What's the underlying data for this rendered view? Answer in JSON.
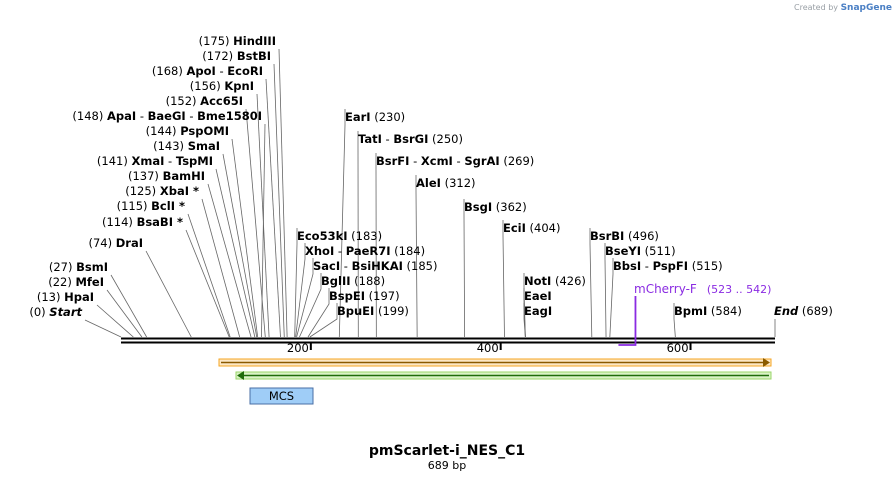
{
  "credit": {
    "prefix": "Created by",
    "brand": "SnapGene"
  },
  "plasmid": {
    "name": "pmScarlet-i_NES_C1",
    "length_label": "689 bp",
    "length": 689
  },
  "ruler": [
    {
      "value": 200,
      "label": "200"
    },
    {
      "value": 400,
      "label": "400"
    },
    {
      "value": 600,
      "label": "600"
    }
  ],
  "sites": [
    {
      "pos": 0,
      "posLabel": "(0)",
      "names": [
        "Start"
      ],
      "italic": true
    },
    {
      "pos": 13,
      "posLabel": "(13)",
      "names": [
        "HpaI"
      ]
    },
    {
      "pos": 22,
      "posLabel": "(22)",
      "names": [
        "MfeI"
      ]
    },
    {
      "pos": 27,
      "posLabel": "(27)",
      "names": [
        "BsmI"
      ]
    },
    {
      "pos": 74,
      "posLabel": "(74)",
      "names": [
        "DraI"
      ]
    },
    {
      "pos": 114,
      "posLabel": "(114)",
      "names": [
        "BsaBI *"
      ]
    },
    {
      "pos": 115,
      "posLabel": "(115)",
      "names": [
        "BclI *"
      ]
    },
    {
      "pos": 125,
      "posLabel": "(125)",
      "names": [
        "XbaI *"
      ]
    },
    {
      "pos": 137,
      "posLabel": "(137)",
      "names": [
        "BamHI"
      ]
    },
    {
      "pos": 141,
      "posLabel": "(141)",
      "names": [
        "XmaI",
        "TspMI"
      ]
    },
    {
      "pos": 143,
      "posLabel": "(143)",
      "names": [
        "SmaI"
      ]
    },
    {
      "pos": 144,
      "posLabel": "(144)",
      "names": [
        "PspOMI"
      ]
    },
    {
      "pos": 148,
      "posLabel": "(148)",
      "names": [
        "ApaI",
        "BaeGI",
        "Bme1580I"
      ]
    },
    {
      "pos": 152,
      "posLabel": "(152)",
      "names": [
        "Acc65I"
      ]
    },
    {
      "pos": 156,
      "posLabel": "(156)",
      "names": [
        "KpnI"
      ]
    },
    {
      "pos": 168,
      "posLabel": "(168)",
      "names": [
        "ApoI",
        "EcoRI"
      ]
    },
    {
      "pos": 172,
      "posLabel": "(172)",
      "names": [
        "BstBI"
      ]
    },
    {
      "pos": 175,
      "posLabel": "(175)",
      "names": [
        "HindIII"
      ]
    },
    {
      "pos": 183,
      "posLabel": "(183)",
      "names": [
        "Eco53kI"
      ]
    },
    {
      "pos": 184,
      "posLabel": "(184)",
      "names": [
        "XhoI",
        "PaeR7I"
      ]
    },
    {
      "pos": 185,
      "posLabel": "(185)",
      "names": [
        "SacI",
        "BsiHKAI"
      ]
    },
    {
      "pos": 188,
      "posLabel": "(188)",
      "names": [
        "BglII"
      ]
    },
    {
      "pos": 197,
      "posLabel": "(197)",
      "names": [
        "BspEI"
      ]
    },
    {
      "pos": 199,
      "posLabel": "(199)",
      "names": [
        "BpuEI"
      ]
    },
    {
      "pos": 230,
      "posLabel": "(230)",
      "names": [
        "EarI"
      ]
    },
    {
      "pos": 250,
      "posLabel": "(250)",
      "names": [
        "TatI",
        "BsrGI"
      ]
    },
    {
      "pos": 269,
      "posLabel": "(269)",
      "names": [
        "BsrFI",
        "XcmI",
        "SgrAI"
      ]
    },
    {
      "pos": 312,
      "posLabel": "(312)",
      "names": [
        "AleI"
      ]
    },
    {
      "pos": 362,
      "posLabel": "(362)",
      "names": [
        "BsgI"
      ]
    },
    {
      "pos": 404,
      "posLabel": "(404)",
      "names": [
        "EciI"
      ]
    },
    {
      "pos": 426,
      "posLabel": "(426)",
      "names": [
        "NotI"
      ]
    },
    {
      "pos": 426,
      "posLabel": "",
      "names": [
        "EaeI"
      ]
    },
    {
      "pos": 426,
      "posLabel": "",
      "names": [
        "EagI"
      ]
    },
    {
      "pos": 496,
      "posLabel": "(496)",
      "names": [
        "BsrBI"
      ]
    },
    {
      "pos": 511,
      "posLabel": "(511)",
      "names": [
        "BseYI"
      ]
    },
    {
      "pos": 515,
      "posLabel": "(515)",
      "names": [
        "BbsI",
        "PspFI"
      ]
    },
    {
      "pos": 584,
      "posLabel": "(584)",
      "names": [
        "BpmI"
      ]
    },
    {
      "pos": 689,
      "posLabel": "(689)",
      "names": [
        "End"
      ],
      "italic": true
    }
  ],
  "primer": {
    "name": "mCherry-F",
    "range": "(523 .. 542)",
    "start": 523,
    "end": 542,
    "color": "#8a2be2"
  },
  "features": {
    "orange": {
      "start": 105,
      "end": 689,
      "color": "#f5a623",
      "direction": "forward"
    },
    "green": {
      "start": 125,
      "end": 689,
      "color": "#3a9b1a",
      "direction": "reverse"
    },
    "mcs": {
      "label": "MCS",
      "start": 137,
      "end": 202,
      "color": "#9fcdf7"
    }
  }
}
